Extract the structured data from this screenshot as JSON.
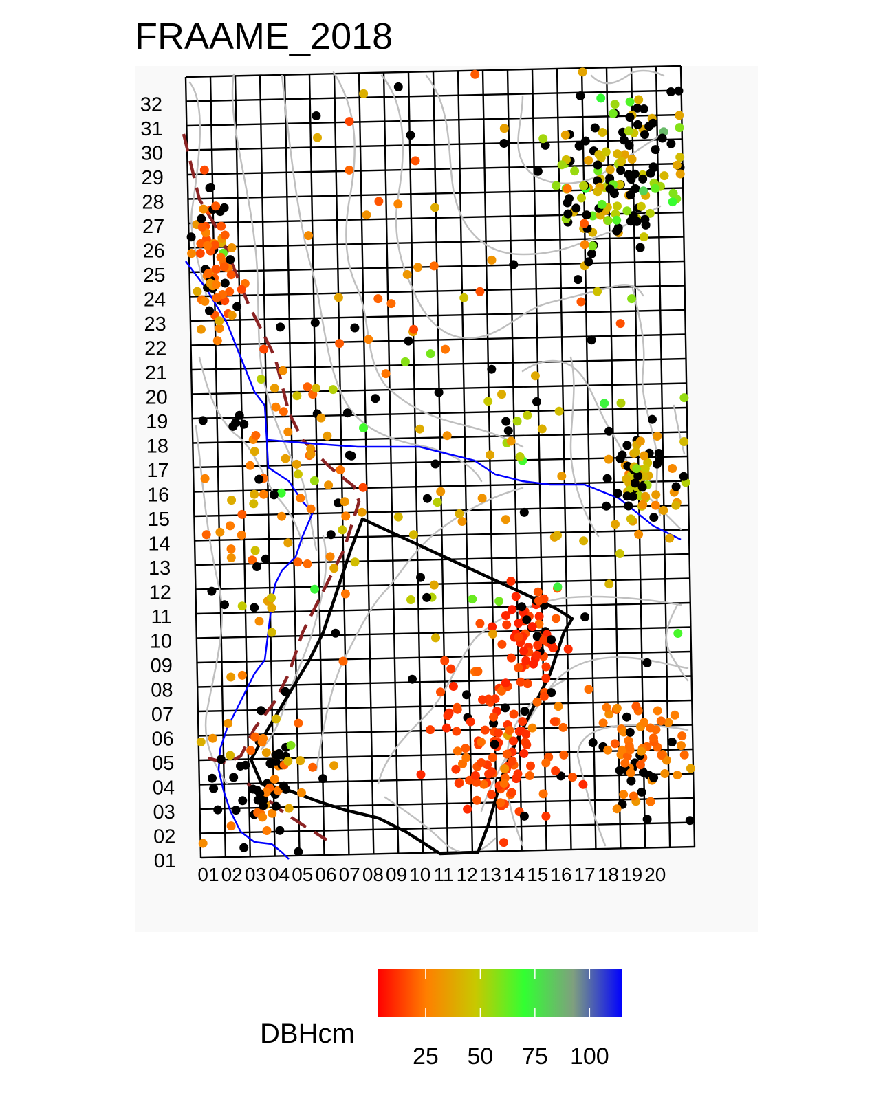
{
  "title": "FRAAME_2018",
  "grid": {
    "x_labels": [
      "01",
      "02",
      "03",
      "04",
      "05",
      "06",
      "07",
      "08",
      "09",
      "10",
      "11",
      "12",
      "13",
      "14",
      "15",
      "16",
      "17",
      "18",
      "19",
      "20"
    ],
    "y_labels": [
      "01",
      "02",
      "03",
      "04",
      "05",
      "06",
      "07",
      "08",
      "09",
      "10",
      "11",
      "12",
      "13",
      "14",
      "15",
      "16",
      "17",
      "18",
      "19",
      "20",
      "21",
      "22",
      "23",
      "24",
      "25",
      "26",
      "27",
      "28",
      "29",
      "30",
      "31",
      "32"
    ]
  },
  "legend": {
    "title": "DBHcm",
    "ticks": [
      "25",
      "50",
      "75",
      "100"
    ],
    "tick_values": [
      25,
      50,
      75,
      100
    ],
    "range": [
      3,
      115
    ],
    "colors": [
      "#ff0000",
      "#ff7f00",
      "#c8c800",
      "#32ff32",
      "#7f9f7f",
      "#0000ff"
    ]
  },
  "colors": {
    "background": "#f9f9f9",
    "grid": "#000000",
    "contour": "#bfbfbf",
    "stream": "#0000ff",
    "trail": "#8b2323",
    "boundary": "#000000",
    "dead_tree": "#000000"
  }
}
